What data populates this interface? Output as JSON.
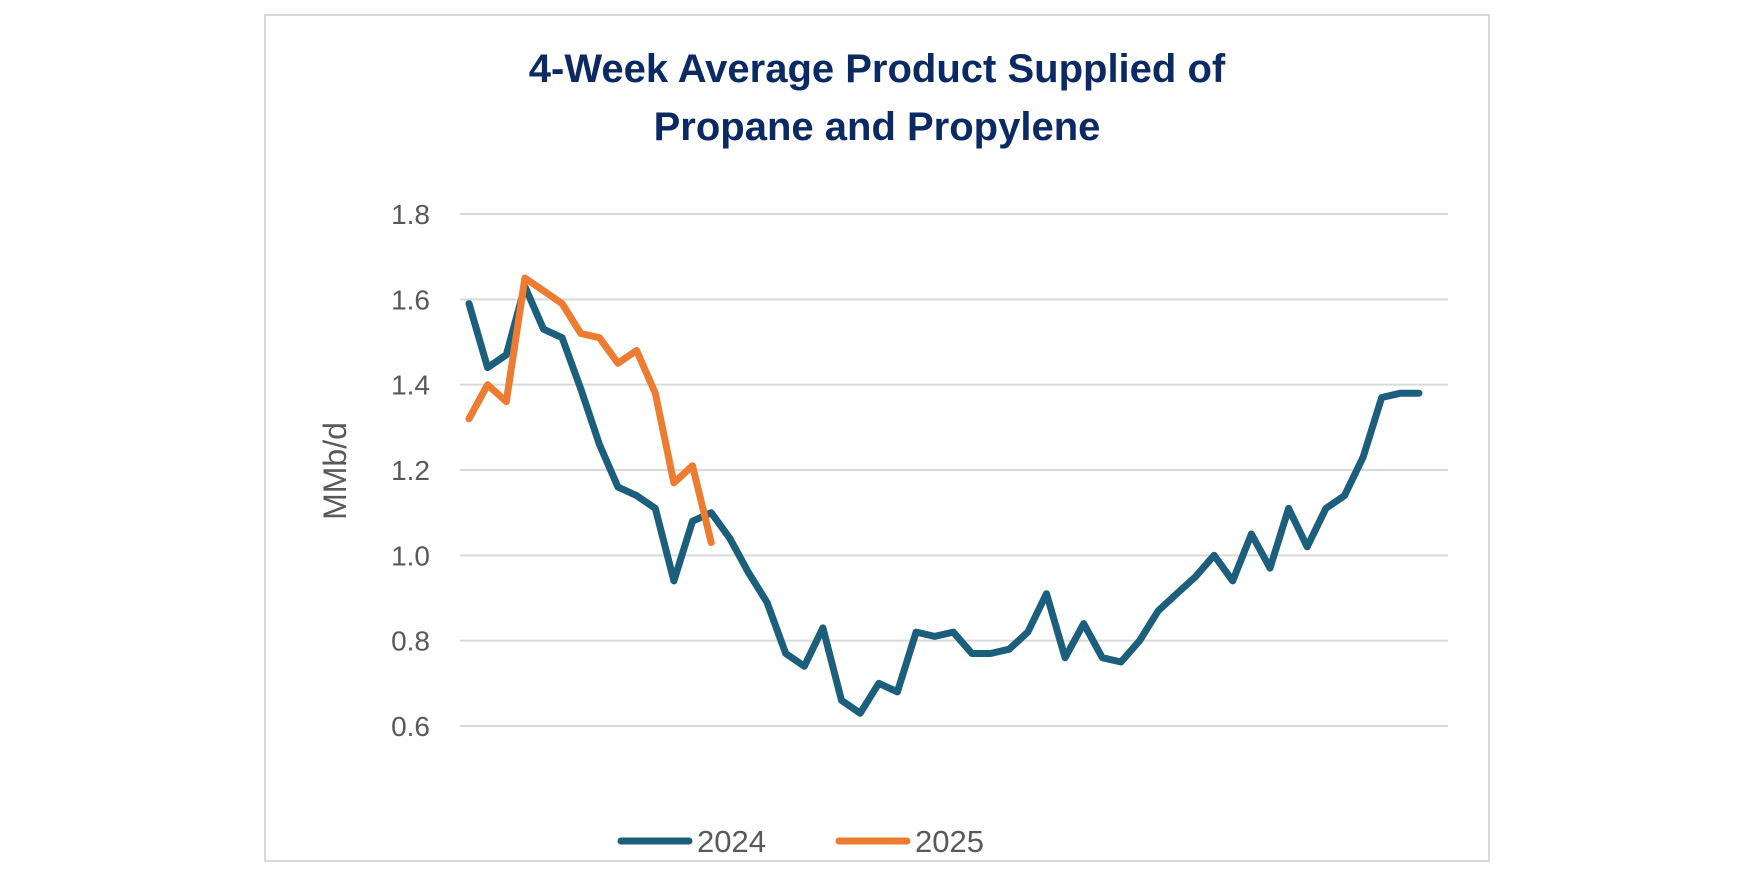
{
  "chart_data": {
    "type": "line",
    "title_lines": [
      "4-Week Average Product Supplied of",
      "Propane and Propylene"
    ],
    "xlabel": "",
    "ylabel": "MMb/d",
    "ylim": [
      0.6,
      1.8
    ],
    "y_ticks": [
      "0.6",
      "0.8",
      "1.0",
      "1.2",
      "1.4",
      "1.6",
      "1.8"
    ],
    "y_tick_values": [
      0.6,
      0.8,
      1.0,
      1.2,
      1.4,
      1.6,
      1.8
    ],
    "grid": true,
    "legend_position": "bottom",
    "series": [
      {
        "name": "2024",
        "color": "#1b5f7c",
        "values": [
          1.59,
          1.44,
          1.47,
          1.63,
          1.53,
          1.51,
          1.39,
          1.26,
          1.16,
          1.14,
          1.11,
          0.94,
          1.08,
          1.1,
          1.04,
          0.96,
          0.89,
          0.77,
          0.74,
          0.83,
          0.66,
          0.63,
          0.7,
          0.68,
          0.82,
          0.81,
          0.82,
          0.77,
          0.77,
          0.78,
          0.82,
          0.91,
          0.76,
          0.84,
          0.76,
          0.75,
          0.8,
          0.87,
          0.91,
          0.95,
          1.0,
          0.94,
          1.05,
          0.97,
          1.11,
          1.02,
          1.11,
          1.14,
          1.23,
          1.37,
          1.38,
          1.38
        ]
      },
      {
        "name": "2025",
        "color": "#ed7b30",
        "values": [
          1.32,
          1.4,
          1.36,
          1.65,
          1.62,
          1.59,
          1.52,
          1.51,
          1.45,
          1.48,
          1.38,
          1.17,
          1.21,
          1.03
        ]
      }
    ]
  }
}
